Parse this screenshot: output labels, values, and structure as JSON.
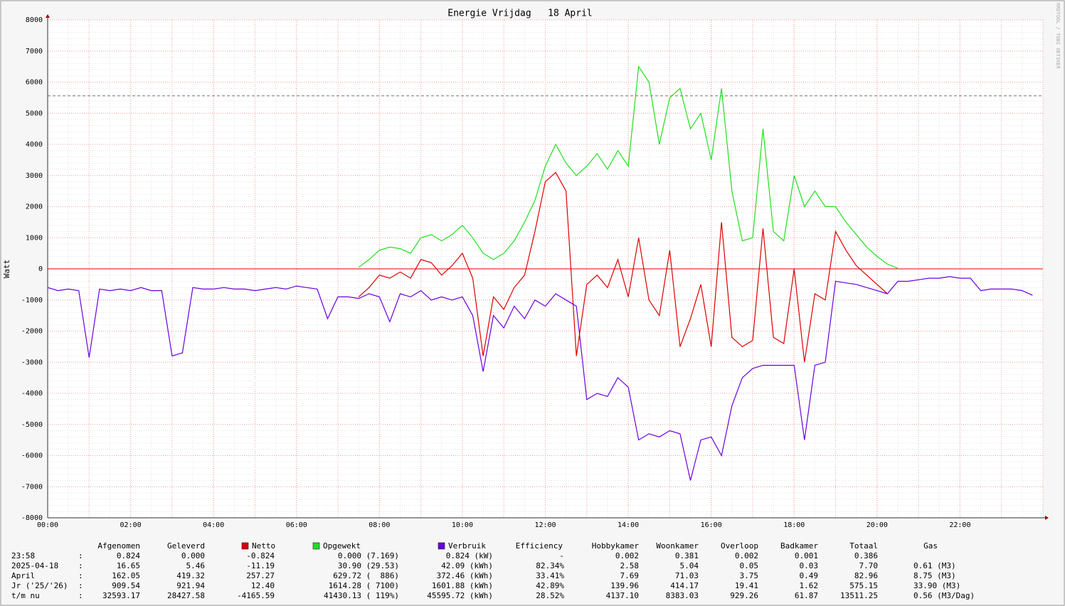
{
  "chart_data": {
    "type": "line",
    "title": "Energie Vrijdag   18 April",
    "y_label": "Watt",
    "watermark": "RRDTOOL / TOBI OETIKER",
    "xlim": [
      0,
      24
    ],
    "xticks": [
      {
        "value": 0,
        "label": "00:00"
      },
      {
        "value": 2,
        "label": "02:00"
      },
      {
        "value": 4,
        "label": "04:00"
      },
      {
        "value": 6,
        "label": "06:00"
      },
      {
        "value": 8,
        "label": "08:00"
      },
      {
        "value": 10,
        "label": "10:00"
      },
      {
        "value": 12,
        "label": "12:00"
      },
      {
        "value": 14,
        "label": "14:00"
      },
      {
        "value": 16,
        "label": "16:00"
      },
      {
        "value": 18,
        "label": "18:00"
      },
      {
        "value": 20,
        "label": "20:00"
      },
      {
        "value": 22,
        "label": "22:00"
      }
    ],
    "ylim": [
      -8000,
      8000
    ],
    "yticks": [
      -8000,
      -7000,
      -6000,
      -5000,
      -4000,
      -3000,
      -2000,
      -1000,
      0,
      1000,
      2000,
      3000,
      4000,
      5000,
      6000,
      7000,
      8000
    ],
    "grid": true,
    "reference_line": 5560,
    "x": [
      0,
      0.25,
      0.5,
      0.75,
      1,
      1.25,
      1.5,
      1.75,
      2,
      2.25,
      2.5,
      2.75,
      3,
      3.25,
      3.5,
      3.75,
      4,
      4.25,
      4.5,
      4.75,
      5,
      5.25,
      5.5,
      5.75,
      6,
      6.25,
      6.5,
      6.75,
      7,
      7.25,
      7.5,
      7.75,
      8,
      8.25,
      8.5,
      8.75,
      9,
      9.25,
      9.5,
      9.75,
      10,
      10.25,
      10.5,
      10.75,
      11,
      11.25,
      11.5,
      11.75,
      12,
      12.25,
      12.5,
      12.75,
      13,
      13.25,
      13.5,
      13.75,
      14,
      14.25,
      14.5,
      14.75,
      15,
      15.25,
      15.5,
      15.75,
      16,
      16.25,
      16.5,
      16.75,
      17,
      17.25,
      17.5,
      17.75,
      18,
      18.25,
      18.5,
      18.75,
      19,
      19.25,
      19.5,
      19.75,
      20,
      20.25,
      20.5,
      20.75,
      21,
      21.25,
      21.5,
      21.75,
      22,
      22.25,
      22.5,
      22.75,
      23,
      23.25,
      23.5,
      23.75
    ],
    "series": [
      {
        "name": "Netto",
        "color": "#dd0000",
        "values": [
          null,
          null,
          null,
          null,
          null,
          null,
          null,
          null,
          null,
          null,
          null,
          null,
          null,
          null,
          null,
          null,
          null,
          null,
          null,
          null,
          null,
          null,
          null,
          null,
          null,
          null,
          null,
          null,
          null,
          null,
          -900,
          -600,
          -200,
          -300,
          -100,
          -300,
          300,
          200,
          -200,
          100,
          500,
          -300,
          -2800,
          -900,
          -1300,
          -600,
          -200,
          1200,
          2800,
          3100,
          2500,
          -2800,
          -500,
          -200,
          -600,
          300,
          -900,
          1000,
          -1000,
          -1500,
          600,
          -2500,
          -1600,
          -500,
          -2500,
          1500,
          -2200,
          -2500,
          -2300,
          1300,
          -2200,
          -2400,
          0,
          -3000,
          -800,
          -1000,
          1200,
          600,
          100,
          -200,
          -500,
          -800,
          null,
          null,
          null,
          null,
          null,
          null,
          null,
          null,
          null,
          null,
          null,
          null,
          null,
          null
        ]
      },
      {
        "name": "Opgewekt",
        "color": "#22dd22",
        "values": [
          null,
          null,
          null,
          null,
          null,
          null,
          null,
          null,
          null,
          null,
          null,
          null,
          null,
          null,
          null,
          null,
          null,
          null,
          null,
          null,
          null,
          null,
          null,
          null,
          null,
          null,
          null,
          null,
          null,
          null,
          50,
          300,
          600,
          700,
          650,
          500,
          1000,
          1100,
          900,
          1100,
          1400,
          1000,
          500,
          300,
          500,
          900,
          1500,
          2200,
          3300,
          4000,
          3400,
          3000,
          3300,
          3700,
          3200,
          3800,
          3300,
          6500,
          6000,
          4000,
          5500,
          5800,
          4500,
          5000,
          3500,
          5800,
          2500,
          900,
          1000,
          4500,
          1200,
          900,
          3000,
          2000,
          2500,
          2000,
          2000,
          1500,
          1100,
          700,
          400,
          150,
          20,
          null,
          null,
          null,
          null,
          null,
          null,
          null,
          null,
          null,
          null,
          null,
          null,
          null
        ]
      },
      {
        "name": "Verbruik",
        "color": "#6a00e0",
        "values": [
          -600,
          -700,
          -650,
          -700,
          -2850,
          -650,
          -700,
          -650,
          -700,
          -600,
          -700,
          -700,
          -2800,
          -2700,
          -600,
          -650,
          -650,
          -600,
          -650,
          -650,
          -700,
          -650,
          -600,
          -650,
          -550,
          -600,
          -650,
          -1600,
          -900,
          -900,
          -950,
          -800,
          -900,
          -1700,
          -800,
          -900,
          -700,
          -1000,
          -900,
          -1000,
          -900,
          -1500,
          -3300,
          -1500,
          -1900,
          -1200,
          -1600,
          -1000,
          -1200,
          -800,
          -1000,
          -1200,
          -4200,
          -4000,
          -4100,
          -3500,
          -3800,
          -5500,
          -5300,
          -5400,
          -5200,
          -5300,
          -6800,
          -5500,
          -5400,
          -6000,
          -4400,
          -3500,
          -3200,
          -3100,
          -3100,
          -3100,
          -3100,
          -5500,
          -3100,
          -3000,
          -400,
          -450,
          -500,
          -600,
          -700,
          -800,
          -400,
          -400,
          -350,
          -300,
          -300,
          -250,
          -300,
          -300,
          -700,
          -650,
          -650,
          -650,
          -700,
          -850
        ]
      }
    ]
  },
  "legend_table": {
    "columns": [
      "Afgenomen",
      "Geleverd",
      "Efficiency",
      "Hobbykamer",
      "Woonkamer",
      "Overloop",
      "Badkamer",
      "Totaal",
      "Gas"
    ],
    "rows": [
      [
        "23:58",
        ":",
        "0.824",
        "0.000",
        "-0.824",
        "0.000 (7.169)",
        "0.824 (kW)",
        "-",
        "0.002",
        "0.381",
        "0.002",
        "0.001",
        "0.386",
        null
      ],
      [
        "2025-04-18",
        ":",
        "16.65",
        "5.46",
        "-11.19",
        "30.90 (29.53)",
        "42.09 (kWh)",
        "82.34%",
        "2.58",
        "5.04",
        "0.05",
        "0.03",
        "7.70",
        "0.61 (M3)"
      ],
      [
        "April",
        ":",
        "162.05",
        "419.32",
        "257.27",
        "629.72 (  886)",
        "372.46 (kWh)",
        "33.41%",
        "7.69",
        "71.03",
        "3.75",
        "0.49",
        "82.96",
        "8.75 (M3)"
      ],
      [
        "Jr ('25/'26)",
        ":",
        "909.54",
        "921.94",
        "12.40",
        "1614.28 ( 7100)",
        "1601.88 (kWh)",
        "42.89%",
        "139.96",
        "414.17",
        "19.41",
        "1.62",
        "575.15",
        "33.90 (M3)"
      ],
      [
        "t/m nu",
        ":",
        "32593.17",
        "28427.58",
        "-4165.59",
        "41430.13 ( 119%)",
        "45595.72 (kWh)",
        "28.52%",
        "4137.10",
        "8383.03",
        "929.26",
        "61.87",
        "13511.25",
        "0.56 (M3/Dag)"
      ]
    ]
  }
}
